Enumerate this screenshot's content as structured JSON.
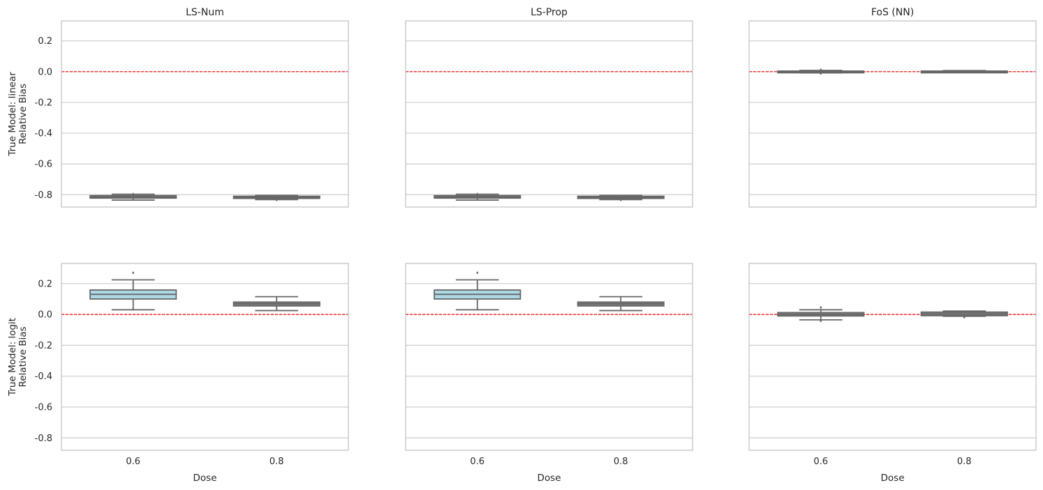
{
  "figure": {
    "y_axis_label_common": "Relative Bias",
    "x_axis_label": "Dose",
    "ylim": [
      -0.88,
      0.33
    ],
    "yticks": [
      "0.2",
      "0.0",
      "-0.2",
      "-0.4",
      "-0.6",
      "-0.8"
    ],
    "ytick_values": [
      0.2,
      0.0,
      -0.2,
      -0.4,
      -0.6,
      -0.8
    ],
    "reference_line_value": 0.0,
    "reference_line_color": "#ff0000",
    "box_color_default": "#808080",
    "box_color_highlight": "#add8e6",
    "grid_color": "#cccccc",
    "frame_color": "#cccccc"
  },
  "columns": [
    "LS-Num",
    "LS-Prop",
    "FoS (NN)"
  ],
  "rows": [
    "True Model: linear",
    "True Model: logit"
  ],
  "chart_data": {
    "type": "box",
    "xlabel": "Dose",
    "ylabel": "Relative Bias",
    "categories": [
      "0.6",
      "0.8"
    ],
    "ylim": [
      -0.88,
      0.33
    ],
    "grid": true,
    "panels": [
      {
        "row": "True Model: linear",
        "column": "LS-Num",
        "boxes": [
          {
            "category": "0.6",
            "whislo": -0.835,
            "q1": -0.822,
            "med": -0.815,
            "q3": -0.806,
            "whishi": -0.797,
            "fliers": [
              -0.796
            ],
            "fill": "#808080"
          },
          {
            "category": "0.8",
            "whislo": -0.832,
            "q1": -0.824,
            "med": -0.818,
            "q3": -0.81,
            "whishi": -0.805,
            "fliers": [
              -0.834
            ],
            "fill": "#808080"
          }
        ]
      },
      {
        "row": "True Model: linear",
        "column": "LS-Prop",
        "boxes": [
          {
            "category": "0.6",
            "whislo": -0.835,
            "q1": -0.822,
            "med": -0.815,
            "q3": -0.806,
            "whishi": -0.797,
            "fliers": [
              -0.796
            ],
            "fill": "#808080"
          },
          {
            "category": "0.8",
            "whislo": -0.832,
            "q1": -0.824,
            "med": -0.818,
            "q3": -0.81,
            "whishi": -0.805,
            "fliers": [
              -0.834
            ],
            "fill": "#808080"
          }
        ]
      },
      {
        "row": "True Model: linear",
        "column": "FoS (NN)",
        "boxes": [
          {
            "category": "0.6",
            "whislo": -0.008,
            "q1": -0.004,
            "med": 0.0,
            "q3": 0.004,
            "whishi": 0.008,
            "fliers": [
              0.012,
              -0.012
            ],
            "fill": "#808080"
          },
          {
            "category": "0.8",
            "whislo": -0.005,
            "q1": -0.002,
            "med": 0.001,
            "q3": 0.004,
            "whishi": 0.007,
            "fliers": [],
            "fill": "#808080"
          }
        ]
      },
      {
        "row": "True Model: logit",
        "column": "LS-Num",
        "boxes": [
          {
            "category": "0.6",
            "whislo": 0.03,
            "q1": 0.1,
            "med": 0.13,
            "q3": 0.158,
            "whishi": 0.224,
            "fliers": [
              0.27
            ],
            "fill": "#add8e6"
          },
          {
            "category": "0.8",
            "whislo": 0.025,
            "q1": 0.055,
            "med": 0.068,
            "q3": 0.08,
            "whishi": 0.115,
            "fliers": [],
            "fill": "#808080"
          }
        ]
      },
      {
        "row": "True Model: logit",
        "column": "LS-Prop",
        "boxes": [
          {
            "category": "0.6",
            "whislo": 0.03,
            "q1": 0.1,
            "med": 0.13,
            "q3": 0.158,
            "whishi": 0.224,
            "fliers": [
              0.27
            ],
            "fill": "#add8e6"
          },
          {
            "category": "0.8",
            "whislo": 0.025,
            "q1": 0.055,
            "med": 0.068,
            "q3": 0.08,
            "whishi": 0.115,
            "fliers": [],
            "fill": "#808080"
          }
        ]
      },
      {
        "row": "True Model: logit",
        "column": "FoS (NN)",
        "boxes": [
          {
            "category": "0.6",
            "whislo": -0.035,
            "q1": -0.01,
            "med": 0.0,
            "q3": 0.012,
            "whishi": 0.03,
            "fliers": [
              0.045,
              -0.042
            ],
            "fill": "#808080"
          },
          {
            "category": "0.8",
            "whislo": -0.012,
            "q1": -0.008,
            "med": 0.002,
            "q3": 0.015,
            "whishi": 0.022,
            "fliers": [
              -0.018
            ],
            "fill": "#808080"
          }
        ]
      }
    ]
  }
}
